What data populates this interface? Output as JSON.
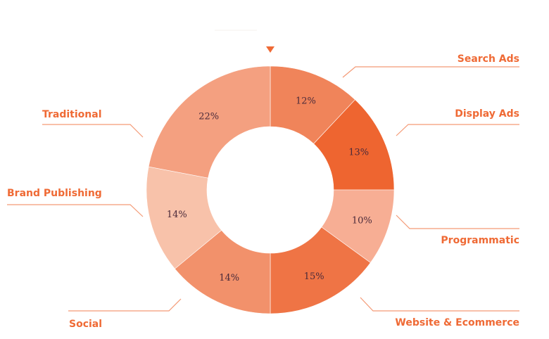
{
  "chart_data": {
    "type": "pie",
    "variant": "donut",
    "start": "top, clockwise",
    "slices": [
      {
        "label": "Search Ads",
        "value": 12,
        "text": "12%",
        "color": "#f0845a"
      },
      {
        "label": "Display Ads",
        "value": 13,
        "text": "13%",
        "color": "#ee6530"
      },
      {
        "label": "Programmatic",
        "value": 10,
        "text": "10%",
        "color": "#f7ae94"
      },
      {
        "label": "Website & Ecommerce",
        "value": 15,
        "text": "15%",
        "color": "#ef7445"
      },
      {
        "label": "Social",
        "value": 14,
        "text": "14%",
        "color": "#f2916b"
      },
      {
        "label": "Brand Publishing",
        "value": 14,
        "text": "14%",
        "color": "#f8c2aa"
      },
      {
        "label": "Traditional",
        "value": 22,
        "text": "22%",
        "color": "#f4a080"
      }
    ],
    "accent_color": "#ef6a35",
    "pointer_marker": "triangle-down at top"
  }
}
